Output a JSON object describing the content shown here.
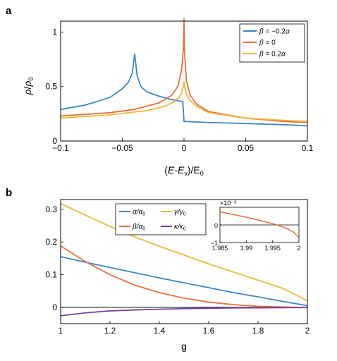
{
  "chart_data": [
    {
      "panel_label": "a",
      "type": "line",
      "xlabel": "(E-E_v)/E_0",
      "ylabel": "ρ/ρ_0",
      "xlim": [
        -0.1,
        0.1
      ],
      "ylim": [
        0,
        1.1
      ],
      "x_ticks": [
        "-0.1",
        "-0.05",
        "0",
        "0.05",
        "0.1"
      ],
      "y_ticks": [
        "0",
        "0.5",
        "1"
      ],
      "legend_position": "top-right",
      "series": [
        {
          "name": "β = −0.2α",
          "color": "#3b86c6",
          "x": [
            -0.1,
            -0.08,
            -0.06,
            -0.05,
            -0.045,
            -0.042,
            -0.04,
            -0.038,
            -0.035,
            -0.03,
            -0.02,
            -0.01,
            -0.005,
            -0.001,
            0,
            0.02,
            0.05,
            0.08,
            0.1
          ],
          "y": [
            0.29,
            0.33,
            0.4,
            0.48,
            0.54,
            0.62,
            0.8,
            0.6,
            0.5,
            0.45,
            0.41,
            0.38,
            0.37,
            0.36,
            0.18,
            0.17,
            0.16,
            0.15,
            0.14
          ]
        },
        {
          "name": "β = 0",
          "color": "#e8703a",
          "x": [
            -0.1,
            -0.06,
            -0.04,
            -0.02,
            -0.01,
            -0.005,
            -0.002,
            -0.0005,
            0,
            0.0005,
            0.002,
            0.005,
            0.01,
            0.02,
            0.05,
            0.08,
            0.1
          ],
          "y": [
            0.23,
            0.26,
            0.29,
            0.35,
            0.42,
            0.5,
            0.65,
            0.85,
            1.12,
            0.8,
            0.55,
            0.42,
            0.34,
            0.27,
            0.21,
            0.18,
            0.17
          ]
        },
        {
          "name": "β = 0.2α",
          "color": "#e9b83a",
          "x": [
            -0.1,
            -0.06,
            -0.03,
            -0.015,
            -0.008,
            -0.004,
            -0.002,
            -0.0005,
            0,
            0.0005,
            0.002,
            0.005,
            0.01,
            0.02,
            0.05,
            0.08,
            0.1
          ],
          "y": [
            0.21,
            0.24,
            0.28,
            0.32,
            0.36,
            0.4,
            0.44,
            0.5,
            0.54,
            0.5,
            0.43,
            0.37,
            0.32,
            0.26,
            0.21,
            0.19,
            0.18
          ]
        }
      ]
    },
    {
      "panel_label": "b",
      "type": "line",
      "xlabel": "g",
      "ylabel": "",
      "xlim": [
        1,
        2
      ],
      "ylim": [
        -0.05,
        0.33
      ],
      "x_ticks": [
        "1",
        "1.2",
        "1.4",
        "1.6",
        "1.8",
        "2"
      ],
      "y_ticks": [
        "0",
        "0.1",
        "0.2",
        "0.3"
      ],
      "legend_position": "top-center",
      "series": [
        {
          "name": "α/α_0",
          "color": "#3b86c6",
          "x": [
            1,
            1.1,
            1.2,
            1.3,
            1.4,
            1.5,
            1.6,
            1.7,
            1.8,
            1.9,
            2
          ],
          "y": [
            0.155,
            0.138,
            0.122,
            0.106,
            0.09,
            0.075,
            0.06,
            0.045,
            0.032,
            0.018,
            0.005
          ]
        },
        {
          "name": "γ/γ_0",
          "color": "#e9b83a",
          "x": [
            1,
            1.1,
            1.2,
            1.3,
            1.4,
            1.5,
            1.6,
            1.7,
            1.8,
            1.9,
            2
          ],
          "y": [
            0.318,
            0.282,
            0.248,
            0.216,
            0.187,
            0.16,
            0.133,
            0.108,
            0.083,
            0.058,
            0.02
          ]
        },
        {
          "name": "β/α_0",
          "color": "#e8703a",
          "x": [
            1,
            1.1,
            1.2,
            1.3,
            1.4,
            1.5,
            1.6,
            1.7,
            1.8,
            1.9,
            2
          ],
          "y": [
            0.188,
            0.14,
            0.1,
            0.068,
            0.045,
            0.028,
            0.016,
            0.008,
            0.003,
            0.001,
            -0.001
          ]
        },
        {
          "name": "κ/κ_0",
          "color": "#7b3fa0",
          "x": [
            1,
            1.1,
            1.2,
            1.3,
            1.4,
            1.5,
            1.6,
            1.7,
            1.8,
            1.9,
            2
          ],
          "y": [
            -0.026,
            -0.017,
            -0.011,
            -0.008,
            -0.006,
            -0.004,
            -0.003,
            -0.002,
            -0.0015,
            -0.001,
            -0.0005
          ]
        }
      ],
      "reference_line_y": 0,
      "inset": {
        "xlim": [
          1.985,
          2
        ],
        "ylim": [
          -1,
          1
        ],
        "x_ticks": [
          "1.985",
          "1.99",
          "1.995",
          "2"
        ],
        "y_ticks": [
          "-1",
          "0"
        ],
        "multiplier_label": "×10⁻³",
        "reference_line_y": 0,
        "series": [
          {
            "name": "β/α_0",
            "color": "#e8703a",
            "x": [
              1.985,
              1.987,
              1.989,
              1.991,
              1.993,
              1.995,
              1.996,
              1.997,
              1.998,
              1.999,
              2.0
            ],
            "y": [
              0.75,
              0.62,
              0.5,
              0.37,
              0.22,
              0.07,
              -0.02,
              -0.12,
              -0.25,
              -0.42,
              -0.7
            ]
          }
        ]
      }
    }
  ]
}
